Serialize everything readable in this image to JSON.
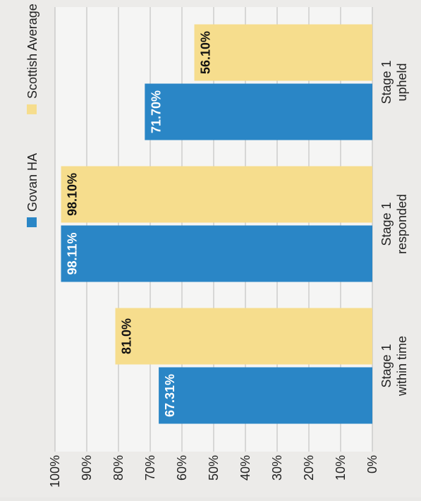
{
  "chart_data": {
    "type": "bar",
    "categories": [
      [
        "Stage 1",
        "within time"
      ],
      [
        "Stage 1",
        "responded"
      ],
      [
        "Stage 1",
        "upheld"
      ]
    ],
    "series": [
      {
        "name": "Govan HA",
        "color": "#2a86c6",
        "values": [
          67.31,
          98.11,
          71.7
        ],
        "value_labels": [
          "67.31%",
          "98.11%",
          "71.70%"
        ],
        "label_color": "#ffffff"
      },
      {
        "name": "Scottish Average",
        "color": "#f6dd8d",
        "values": [
          81.0,
          98.1,
          56.1
        ],
        "value_labels": [
          "81.0%",
          "98.10%",
          "56.10%"
        ],
        "label_color": "#111111"
      }
    ],
    "ylim": [
      0,
      100
    ],
    "yticks": [
      {
        "value": 0,
        "label": "0%"
      },
      {
        "value": 10,
        "label": "10%"
      },
      {
        "value": 20,
        "label": "20%"
      },
      {
        "value": 30,
        "label": "30%"
      },
      {
        "value": 40,
        "label": "40%"
      },
      {
        "value": 50,
        "label": "50%"
      },
      {
        "value": 60,
        "label": "60%"
      },
      {
        "value": 70,
        "label": "70%"
      },
      {
        "value": 80,
        "label": "80%"
      },
      {
        "value": 90,
        "label": "90%"
      },
      {
        "value": 100,
        "label": "100%"
      }
    ],
    "grid": true,
    "legend": "top",
    "rotated": true
  }
}
